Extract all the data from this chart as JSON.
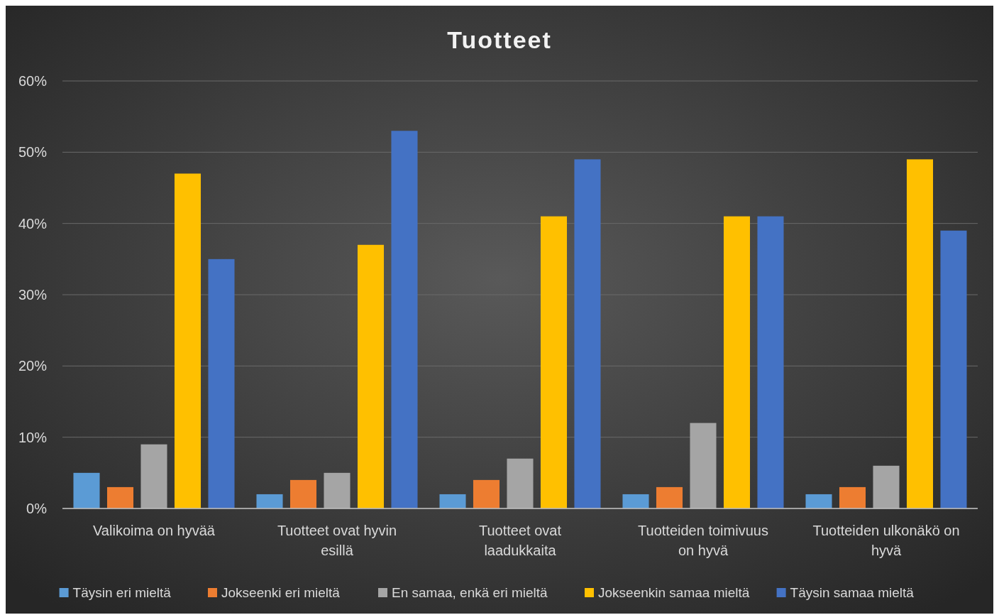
{
  "chart_data": {
    "type": "bar",
    "title": "Tuotteet",
    "categories": [
      "Valikoima on hyvää",
      "Tuotteet ovat hyvin esillä",
      "Tuotteet ovat laadukkaita",
      "Tuotteiden toimivuus on hyvä",
      "Tuotteiden ulkonäkö on hyvä"
    ],
    "series": [
      {
        "name": "Täysin eri mieltä",
        "color": "#5b9bd5",
        "values": [
          5,
          2,
          2,
          2,
          2
        ]
      },
      {
        "name": "Jokseenki eri mieltä",
        "color": "#ed7d31",
        "values": [
          3,
          4,
          4,
          3,
          3
        ]
      },
      {
        "name": "En samaa, enkä eri mieltä",
        "color": "#a5a5a5",
        "values": [
          9,
          5,
          7,
          12,
          6
        ]
      },
      {
        "name": "Jokseenkin samaa mieltä",
        "color": "#ffc000",
        "values": [
          47,
          37,
          41,
          41,
          49
        ]
      },
      {
        "name": "Täysin samaa mieltä",
        "color": "#4472c4",
        "values": [
          35,
          53,
          49,
          41,
          39
        ]
      }
    ],
    "ylim": [
      0,
      60
    ],
    "yticks": [
      {
        "value": 0,
        "label": "0%"
      },
      {
        "value": 10,
        "label": "10%"
      },
      {
        "value": 20,
        "label": "20%"
      },
      {
        "value": 30,
        "label": "30%"
      },
      {
        "value": 40,
        "label": "40%"
      },
      {
        "value": 50,
        "label": "50%"
      },
      {
        "value": 60,
        "label": "60%"
      }
    ],
    "grid": "y",
    "legend": "bottom"
  }
}
